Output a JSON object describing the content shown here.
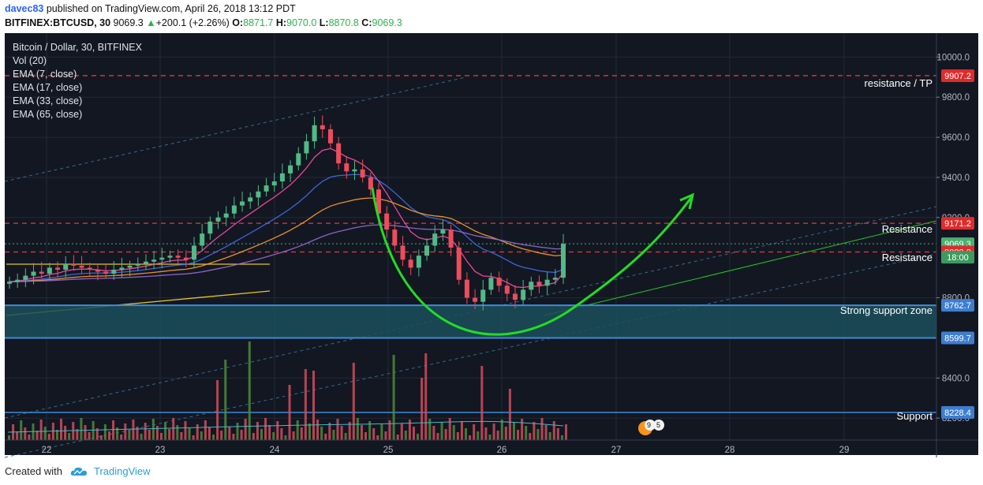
{
  "header": {
    "author": "davec83",
    "published": "published on TradingView.com, April 26, 2018 13:12 PDT",
    "symbol": "BITFINEX:BTCUSD, 30",
    "price": "9069.3",
    "change": "+200.1 (+2.26%)",
    "open_label": "O:",
    "open": "8871.7",
    "high_label": "H:",
    "high": "9070.0",
    "low_label": "L:",
    "low": "8870.8",
    "close_label": "C:",
    "close": "9069.3"
  },
  "legend": {
    "title": "Bitcoin / Dollar, 30, BITFINEX",
    "items": [
      "Vol (20)",
      "EMA (7, close)",
      "EMA (17, close)",
      "EMA (33, close)",
      "EMA (65, close)"
    ]
  },
  "colors": {
    "background": "#131722",
    "up": "#53b987",
    "down": "#eb4d5c",
    "resistance_line": "#e33a3a",
    "support_zone": "#1b4f5a",
    "support_border": "#3d8bd9",
    "arrow": "#22dd22",
    "ema7": "#ff4fa3",
    "ema17": "#3f6fe8",
    "ema33": "#ff9e2c",
    "ema65": "#9a6bd6"
  },
  "chart_data": {
    "type": "candlestick",
    "title": "Bitcoin / Dollar, 30, BITFINEX",
    "x_ticks": [
      "22",
      "23",
      "24",
      "25",
      "26",
      "27",
      "28",
      "29"
    ],
    "y_ticks": [
      "10000.0",
      "9800.0",
      "9600.0",
      "9400.0",
      "9200.0",
      "8800.0",
      "8400.0",
      "8200.0"
    ],
    "ylim": [
      8130,
      10080
    ],
    "price_markers": [
      {
        "value": 9907.2,
        "label": "9907.2",
        "type": "resistance"
      },
      {
        "value": 9171.2,
        "label": "9171.2",
        "type": "resistance"
      },
      {
        "value": 9069.3,
        "label": "9069.3",
        "type": "last"
      },
      {
        "value": 9028.3,
        "label": "9028.3",
        "type": "resistance"
      },
      {
        "value": 8762.7,
        "label": "8762.7",
        "type": "support"
      },
      {
        "value": 8599.7,
        "label": "8599.7",
        "type": "support"
      },
      {
        "value": 8228.4,
        "label": "8228.4",
        "type": "support"
      }
    ],
    "countdown": "18:00",
    "annotations": [
      {
        "text": "resistance / TP",
        "value": 9907.2
      },
      {
        "text": "Resistance",
        "value": 9171.2
      },
      {
        "text": "Resistance",
        "value": 9028.3
      },
      {
        "text": "Strong support zone",
        "value": 8680
      },
      {
        "text": "Support",
        "value": 8228.4
      }
    ],
    "candles_close_approx": [
      8880,
      8890,
      8910,
      8930,
      8920,
      8950,
      8940,
      8970,
      8960,
      8950,
      8940,
      8930,
      8920,
      8940,
      8950,
      8960,
      8970,
      8980,
      8990,
      9000,
      9010,
      9000,
      8990,
      9060,
      9120,
      9180,
      9200,
      9220,
      9260,
      9280,
      9300,
      9330,
      9360,
      9380,
      9420,
      9460,
      9520,
      9580,
      9660,
      9640,
      9570,
      9470,
      9430,
      9440,
      9400,
      9340,
      9220,
      9140,
      9060,
      8990,
      8950,
      9010,
      9060,
      9120,
      9140,
      9050,
      8890,
      8800,
      8780,
      8840,
      8900,
      8860,
      8820,
      8790,
      8840,
      8880,
      8860,
      8890,
      8900,
      9069
    ],
    "event_badges": [
      "9",
      "5"
    ]
  },
  "footer": {
    "created_with": "Created with",
    "brand": "TradingView"
  }
}
